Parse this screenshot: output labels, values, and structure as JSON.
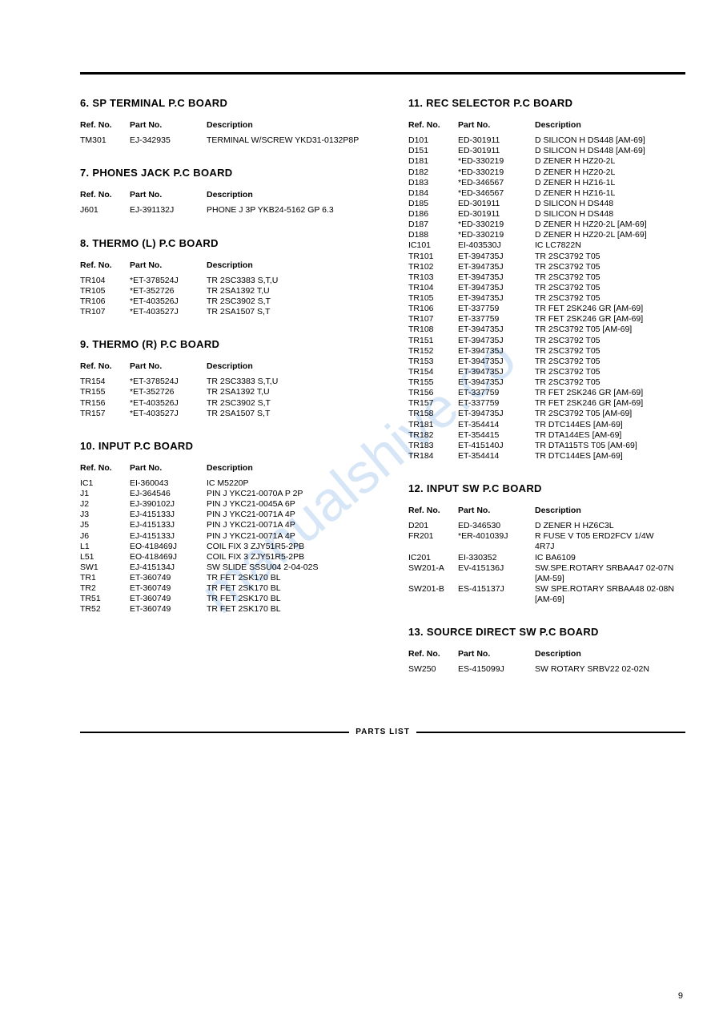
{
  "watermark_text": "manualshive.co",
  "footer_label": "PARTS LIST",
  "page_number": "9",
  "header_ref": "Ref. No.",
  "header_part": "Part No.",
  "header_desc": "Description",
  "sections_left": [
    {
      "title": "6. SP TERMINAL P.C BOARD",
      "rows": [
        {
          "ref": "TM301",
          "part": "EJ-342935",
          "desc": "TERMINAL W/SCREW YKD31-0132P8P"
        }
      ]
    },
    {
      "title": "7. PHONES JACK P.C BOARD",
      "rows": [
        {
          "ref": "J601",
          "part": "EJ-391132J",
          "desc": "PHONE J 3P YKB24-5162 GP 6.3"
        }
      ]
    },
    {
      "title": "8. THERMO (L) P.C BOARD",
      "rows": [
        {
          "ref": "TR104",
          "part": "*ET-378524J",
          "desc": "TR 2SC3383 S,T,U"
        },
        {
          "ref": "TR105",
          "part": "*ET-352726",
          "desc": "TR 2SA1392 T,U"
        },
        {
          "ref": "TR106",
          "part": "*ET-403526J",
          "desc": "TR 2SC3902 S,T"
        },
        {
          "ref": "TR107",
          "part": "*ET-403527J",
          "desc": "TR 2SA1507 S,T"
        }
      ]
    },
    {
      "title": "9. THERMO (R) P.C BOARD",
      "rows": [
        {
          "ref": "TR154",
          "part": "*ET-378524J",
          "desc": "TR 2SC3383 S,T,U"
        },
        {
          "ref": "TR155",
          "part": "*ET-352726",
          "desc": "TR 2SA1392 T,U"
        },
        {
          "ref": "TR156",
          "part": "*ET-403526J",
          "desc": "TR 2SC3902 S,T"
        },
        {
          "ref": "TR157",
          "part": "*ET-403527J",
          "desc": "TR 2SA1507 S,T"
        }
      ]
    },
    {
      "title": "10. INPUT P.C BOARD",
      "rows": [
        {
          "ref": "IC1",
          "part": "EI-360043",
          "desc": "IC M5220P"
        },
        {
          "ref": "J1",
          "part": "EJ-364546",
          "desc": "PIN J YKC21-0070A P 2P"
        },
        {
          "ref": "J2",
          "part": "EJ-390102J",
          "desc": "PIN J YKC21-0045A 6P"
        },
        {
          "ref": "J3",
          "part": "EJ-415133J",
          "desc": "PIN J YKC21-0071A 4P"
        },
        {
          "ref": "J5",
          "part": "EJ-415133J",
          "desc": "PIN J YKC21-0071A 4P"
        },
        {
          "ref": "J6",
          "part": "EJ-415133J",
          "desc": "PIN J YKC21-0071A 4P"
        },
        {
          "ref": "L1",
          "part": "EO-418469J",
          "desc": "COIL FIX 3 ZJY51R5-2PB"
        },
        {
          "ref": "L51",
          "part": "EO-418469J",
          "desc": "COIL FIX 3 ZJY51R5-2PB"
        },
        {
          "ref": "SW1",
          "part": "EJ-415134J",
          "desc": "SW SLIDE SSSU04 2-04-02S"
        },
        {
          "ref": "TR1",
          "part": "ET-360749",
          "desc": "TR FET 2SK170 BL"
        },
        {
          "ref": "TR2",
          "part": "ET-360749",
          "desc": "TR FET 2SK170 BL"
        },
        {
          "ref": "TR51",
          "part": "ET-360749",
          "desc": "TR FET 2SK170 BL"
        },
        {
          "ref": "TR52",
          "part": "ET-360749",
          "desc": "TR FET 2SK170 BL"
        }
      ]
    }
  ],
  "sections_right": [
    {
      "title": "11. REC SELECTOR P.C BOARD",
      "rows": [
        {
          "ref": "D101",
          "part": "ED-301911",
          "desc": "D SILICON H DS448 [AM-69]"
        },
        {
          "ref": "D151",
          "part": "ED-301911",
          "desc": "D SILICON H DS448 [AM-69]"
        },
        {
          "ref": "D181",
          "part": "*ED-330219",
          "desc": "D ZENER H HZ20-2L"
        },
        {
          "ref": "D182",
          "part": "*ED-330219",
          "desc": "D ZENER H HZ20-2L"
        },
        {
          "ref": "D183",
          "part": "*ED-346567",
          "desc": "D ZENER H HZ16-1L"
        },
        {
          "ref": "D184",
          "part": "*ED-346567",
          "desc": "D ZENER H HZ16-1L"
        },
        {
          "ref": "D185",
          "part": "ED-301911",
          "desc": "D SILICON H DS448"
        },
        {
          "ref": "D186",
          "part": "ED-301911",
          "desc": "D SILICON H DS448"
        },
        {
          "ref": "D187",
          "part": "*ED-330219",
          "desc": "D ZENER H HZ20-2L [AM-69]"
        },
        {
          "ref": "D188",
          "part": "*ED-330219",
          "desc": "D ZENER H HZ20-2L [AM-69]"
        },
        {
          "ref": "IC101",
          "part": "EI-403530J",
          "desc": "IC LC7822N"
        },
        {
          "ref": "TR101",
          "part": "ET-394735J",
          "desc": "TR 2SC3792 T05"
        },
        {
          "ref": "TR102",
          "part": "ET-394735J",
          "desc": "TR 2SC3792 T05"
        },
        {
          "ref": "TR103",
          "part": "ET-394735J",
          "desc": "TR 2SC3792 T05"
        },
        {
          "ref": "TR104",
          "part": "ET-394735J",
          "desc": "TR 2SC3792 T05"
        },
        {
          "ref": "TR105",
          "part": "ET-394735J",
          "desc": "TR 2SC3792 T05"
        },
        {
          "ref": "TR106",
          "part": "ET-337759",
          "desc": "TR FET 2SK246 GR [AM-69]"
        },
        {
          "ref": "TR107",
          "part": "ET-337759",
          "desc": "TR FET 2SK246 GR [AM-69]"
        },
        {
          "ref": "TR108",
          "part": "ET-394735J",
          "desc": "TR 2SC3792 T05 [AM-69]"
        },
        {
          "ref": "TR151",
          "part": "ET-394735J",
          "desc": "TR 2SC3792 T05"
        },
        {
          "ref": "TR152",
          "part": "ET-394735J",
          "desc": "TR 2SC3792 T05"
        },
        {
          "ref": "TR153",
          "part": "ET-394735J",
          "desc": "TR 2SC3792 T05"
        },
        {
          "ref": "TR154",
          "part": "ET-394735J",
          "desc": "TR 2SC3792 T05"
        },
        {
          "ref": "TR155",
          "part": "ET-394735J",
          "desc": "TR 2SC3792 T05"
        },
        {
          "ref": "TR156",
          "part": "ET-337759",
          "desc": "TR FET 2SK246 GR [AM-69]"
        },
        {
          "ref": "TR157",
          "part": "ET-337759",
          "desc": "TR FET 2SK246 GR [AM-69]"
        },
        {
          "ref": "TR158",
          "part": "ET-394735J",
          "desc": "TR 2SC3792 T05 [AM-69]"
        },
        {
          "ref": "TR181",
          "part": "ET-354414",
          "desc": "TR DTC144ES [AM-69]"
        },
        {
          "ref": "TR182",
          "part": "ET-354415",
          "desc": "TR DTA144ES [AM-69]"
        },
        {
          "ref": "TR183",
          "part": "ET-415140J",
          "desc": "TR DTA115TS T05 [AM-69]"
        },
        {
          "ref": "TR184",
          "part": "ET-354414",
          "desc": "TR DTC144ES [AM-69]"
        }
      ]
    },
    {
      "title": "12. INPUT SW P.C BOARD",
      "rows": [
        {
          "ref": "D201",
          "part": "ED-346530",
          "desc": "D ZENER H HZ6C3L"
        },
        {
          "ref": "FR201",
          "part": "*ER-401039J",
          "desc": "R FUSE V T05 ERD2FCV 1/4W 4R7J"
        },
        {
          "ref": "IC201",
          "part": "EI-330352",
          "desc": "IC BA6109"
        },
        {
          "ref": "SW201-A",
          "part": "EV-415136J",
          "desc": "SW.SPE.ROTARY SRBAA47 02-07N [AM-59]"
        },
        {
          "ref": "SW201-B",
          "part": "ES-415137J",
          "desc": "SW SPE.ROTARY SRBAA48 02-08N [AM-69]"
        }
      ]
    },
    {
      "title": "13. SOURCE DIRECT SW P.C BOARD",
      "rows": [
        {
          "ref": "SW250",
          "part": "ES-415099J",
          "desc": "SW ROTARY SRBV22 02-02N"
        }
      ]
    }
  ]
}
